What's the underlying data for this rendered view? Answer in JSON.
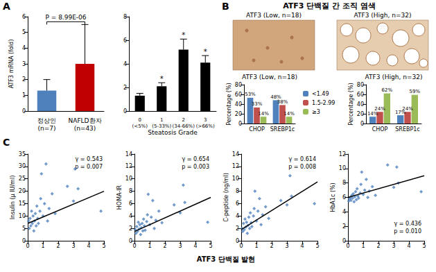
{
  "panel_labels": [
    "A",
    "B",
    "C"
  ],
  "panel_b_title": "ATF3 단백질 간 조직 염색",
  "images": [
    {
      "caption": "ATF3 (Low, n=18)"
    },
    {
      "caption": "ATF3 (High, n=32)"
    }
  ],
  "panel_c_xlabel": "ATF3 단백질 발현",
  "chart_data": [
    {
      "type": "bar",
      "categories": [
        "정상인\n(n=7)",
        "NAFLD환자\n(n=43)"
      ],
      "values": [
        1.3,
        3.0
      ],
      "errors": [
        0.7,
        2.5
      ],
      "colors": [
        "#4F81BD",
        "#C00000"
      ],
      "ylabel": "ATF3 mRNA (fold)",
      "ylim": [
        0,
        6
      ],
      "yticks": [
        0,
        1,
        2,
        3,
        4,
        5,
        6
      ],
      "grid": false,
      "annotation": "P = 8.99E-06"
    },
    {
      "type": "bar",
      "categories": [
        "0\n(<5%)",
        "1\n(5-33%)",
        "2\n(34-66%)",
        "3\n(>66%)"
      ],
      "values": [
        1.3,
        2.1,
        5.2,
        4.1
      ],
      "errors": [
        0.2,
        0.3,
        0.9,
        0.6
      ],
      "significant": [
        false,
        true,
        true,
        true
      ],
      "annotation": "*",
      "color": "#000000",
      "xlabel": "Steatosis Grade",
      "ylim": [
        0,
        8
      ],
      "yticks": [
        0,
        2,
        4,
        6,
        8
      ],
      "grid": false
    },
    {
      "type": "bar",
      "title": "ATF3 (Low, n=18)",
      "categories": [
        "CHOP",
        "SREBP1c"
      ],
      "series": [
        {
          "name": "<1.49",
          "color": "#4F81BD",
          "values": [
            53,
            48
          ],
          "value_labels": [
            "53%",
            "48%"
          ]
        },
        {
          "name": "1.5-2.99",
          "color": "#C0504D",
          "values": [
            33,
            38
          ],
          "value_labels": [
            "33%",
            "38%"
          ]
        },
        {
          "name": "≥3",
          "color": "#9BBB59",
          "values": [
            14,
            14
          ],
          "value_labels": [
            "14%",
            "14%"
          ]
        }
      ],
      "ylabel": "Percentage (%)",
      "ylim": [
        0,
        80
      ],
      "yticks": [
        0,
        20,
        40,
        60,
        80
      ],
      "grid": false,
      "data_labels": true,
      "legend": "right"
    },
    {
      "type": "bar",
      "title": "ATF3 (High, n=32)",
      "categories": [
        "CHOP",
        "SREBP1c"
      ],
      "series": [
        {
          "name": "<1.49",
          "color": "#4F81BD",
          "values": [
            14,
            17
          ],
          "value_labels": [
            "14%",
            "17%"
          ]
        },
        {
          "name": "1.5-2.99",
          "color": "#C0504D",
          "values": [
            24,
            24
          ],
          "value_labels": [
            "24%",
            "24%"
          ]
        },
        {
          "name": "≥3",
          "color": "#9BBB59",
          "values": [
            62,
            59
          ],
          "value_labels": [
            "62%",
            "59%"
          ]
        }
      ],
      "ylabel": "Percentage (%)",
      "ylim": [
        0,
        80
      ],
      "yticks": [
        0,
        20,
        40,
        60,
        80
      ],
      "grid": false,
      "data_labels": true
    },
    {
      "type": "scatter",
      "ylabel": "Insulin (μ IU/ml)",
      "x": [
        0.05,
        0.1,
        0.15,
        0.2,
        0.25,
        0.3,
        0.35,
        0.4,
        0.45,
        0.5,
        0.55,
        0.6,
        0.65,
        0.7,
        0.8,
        0.85,
        0.9,
        1.0,
        1.1,
        1.2,
        1.3,
        1.4,
        1.6,
        1.8,
        2.6,
        3.0,
        3.1,
        3.3,
        4.8
      ],
      "values": [
        8,
        5,
        9,
        6,
        12,
        7,
        10,
        4,
        8,
        11,
        6,
        14,
        9,
        7,
        12,
        17,
        27,
        10,
        15,
        31,
        8,
        13,
        19,
        11,
        22,
        16,
        29,
        21,
        12
      ],
      "trend": {
        "x": [
          0,
          5
        ],
        "values": [
          7,
          20
        ]
      },
      "annotation": [
        "γ = 0.543",
        "p = 0.007"
      ],
      "color": "#4F81BD",
      "marker": "diamond",
      "xlim": [
        0,
        5
      ],
      "xticks": [
        0,
        1,
        2,
        3,
        4,
        5
      ],
      "ylim": [
        0,
        35
      ],
      "yticks": [
        0,
        5,
        10,
        15,
        20,
        25,
        30,
        35
      ],
      "grid": false
    },
    {
      "type": "scatter",
      "ylabel": "HOMA-IR",
      "x": [
        0.05,
        0.1,
        0.15,
        0.2,
        0.25,
        0.3,
        0.35,
        0.4,
        0.45,
        0.5,
        0.55,
        0.6,
        0.65,
        0.7,
        0.8,
        0.85,
        0.9,
        1.0,
        1.1,
        1.2,
        1.3,
        1.4,
        1.6,
        1.8,
        2.6,
        3.0,
        3.2,
        3.3,
        4.8
      ],
      "values": [
        1.8,
        1.2,
        2.3,
        1.5,
        3.0,
        1.9,
        2.6,
        1.0,
        2.1,
        2.8,
        1.6,
        3.5,
        2.4,
        1.7,
        3.1,
        4.2,
        7.5,
        2.6,
        3.8,
        6.5,
        2.0,
        3.3,
        4.8,
        2.9,
        5.8,
        4.5,
        9.0,
        6.2,
        3.0
      ],
      "trend": {
        "x": [
          0,
          5
        ],
        "values": [
          1.5,
          7
        ]
      },
      "annotation": [
        "γ = 0.654",
        "p = 0.003"
      ],
      "color": "#4F81BD",
      "marker": "diamond",
      "xlim": [
        0,
        5
      ],
      "xticks": [
        0,
        1,
        2,
        3,
        4,
        5
      ],
      "ylim": [
        0,
        14
      ],
      "yticks": [
        0,
        2,
        4,
        6,
        8,
        10,
        12,
        14
      ],
      "grid": false
    },
    {
      "type": "scatter",
      "ylabel": "C-peptide (ng/ml)",
      "x": [
        0.05,
        0.1,
        0.15,
        0.2,
        0.25,
        0.3,
        0.35,
        0.4,
        0.45,
        0.5,
        0.55,
        0.6,
        0.65,
        0.7,
        0.8,
        0.85,
        0.9,
        1.0,
        1.1,
        1.2,
        1.3,
        1.4,
        1.6,
        1.8,
        2.6,
        3.0,
        3.2,
        3.3,
        4.8
      ],
      "values": [
        2.0,
        1.5,
        2.8,
        1.8,
        3.5,
        2.2,
        3.0,
        1.2,
        2.5,
        3.8,
        2.0,
        4.5,
        2.9,
        2.3,
        4.0,
        5.2,
        8.0,
        3.2,
        4.8,
        6.8,
        2.6,
        4.2,
        5.5,
        3.6,
        6.5,
        5.8,
        10.5,
        7.2,
        6.0
      ],
      "trend": {
        "x": [
          0,
          5
        ],
        "values": [
          1.8,
          9.5
        ]
      },
      "annotation": [
        "γ = 0.614",
        "p = 0.008"
      ],
      "color": "#4F81BD",
      "marker": "diamond",
      "xlim": [
        0,
        5
      ],
      "xticks": [
        0,
        1,
        2,
        3,
        4,
        5
      ],
      "ylim": [
        0,
        14
      ],
      "yticks": [
        0,
        2,
        4,
        6,
        8,
        10,
        12,
        14
      ],
      "grid": false
    },
    {
      "type": "scatter",
      "ylabel": "HbA1c (%)",
      "x": [
        0.05,
        0.1,
        0.15,
        0.2,
        0.25,
        0.3,
        0.35,
        0.4,
        0.45,
        0.5,
        0.55,
        0.6,
        0.65,
        0.7,
        0.8,
        0.85,
        0.9,
        1.0,
        1.1,
        1.2,
        1.3,
        1.4,
        1.6,
        1.8,
        2.6,
        3.0,
        3.2,
        3.3,
        4.8
      ],
      "values": [
        5.5,
        5.8,
        6.0,
        5.6,
        6.3,
        5.9,
        6.5,
        5.4,
        6.1,
        6.8,
        5.7,
        7.2,
        6.2,
        5.9,
        6.6,
        7.8,
        9.5,
        6.4,
        7.0,
        8.5,
        6.0,
        6.9,
        7.5,
        6.3,
        10.5,
        7.4,
        10.2,
        8.0,
        6.8
      ],
      "trend": {
        "x": [
          0,
          5
        ],
        "values": [
          6,
          9
        ]
      },
      "annotation": [
        "γ = 0.436",
        "p = 0.010"
      ],
      "color": "#4F81BD",
      "marker": "diamond",
      "xlim": [
        0,
        5
      ],
      "xticks": [
        0,
        1,
        2,
        3,
        4,
        5
      ],
      "ylim": [
        0,
        12
      ],
      "yticks": [
        0,
        2,
        4,
        6,
        8,
        10,
        12
      ],
      "grid": false
    }
  ]
}
